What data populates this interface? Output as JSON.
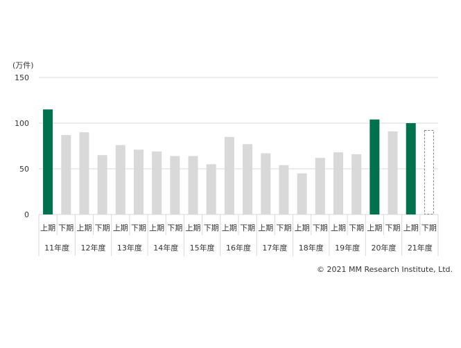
{
  "chart_data": {
    "type": "bar",
    "unit_label": "(万件)",
    "y_ticks": [
      0,
      50,
      100,
      150
    ],
    "ylim": [
      0,
      150
    ],
    "half_labels": [
      "上期",
      "下期"
    ],
    "years": [
      "11年度",
      "12年度",
      "13年度",
      "14年度",
      "15年度",
      "16年度",
      "17年度",
      "18年度",
      "19年度",
      "20年度",
      "21年度"
    ],
    "values": [
      [
        115,
        87
      ],
      [
        90,
        65
      ],
      [
        76,
        71
      ],
      [
        69,
        64
      ],
      [
        64,
        55
      ],
      [
        85,
        77
      ],
      [
        67,
        54
      ],
      [
        45,
        62
      ],
      [
        68,
        66
      ],
      [
        104,
        91
      ],
      [
        100,
        92
      ]
    ],
    "highlight_bars": [
      "11年度-上期",
      "20年度-上期",
      "21年度-上期"
    ],
    "forecast_bars": [
      "21年度-下期"
    ],
    "colors": {
      "highlight": "#00714D",
      "normal": "#D9D9D9",
      "forecast_border": "#808080",
      "grid": "#D9D9D9"
    },
    "grid": true,
    "legend": "none"
  },
  "copyright": "© 2021 MM Research Institute, Ltd."
}
